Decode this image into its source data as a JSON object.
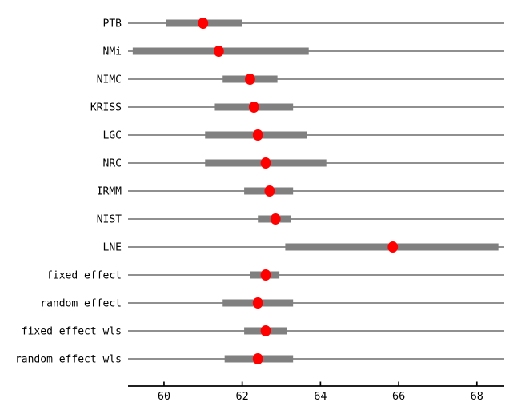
{
  "chart_data": {
    "type": "scatter",
    "subtype": "forest-dot-plot",
    "title": "",
    "xlabel": "",
    "ylabel": "",
    "xlim": [
      59.08,
      68.7
    ],
    "x_ticks": [
      60,
      62,
      64,
      66,
      68
    ],
    "grid": false,
    "legend": false,
    "rows": [
      {
        "label": "PTB",
        "estimate": 61.0,
        "ci_low": 60.05,
        "ci_high": 62.0
      },
      {
        "label": "NMi",
        "estimate": 61.4,
        "ci_low": 59.2,
        "ci_high": 63.7
      },
      {
        "label": "NIMC",
        "estimate": 62.2,
        "ci_low": 61.5,
        "ci_high": 62.9
      },
      {
        "label": "KRISS",
        "estimate": 62.3,
        "ci_low": 61.3,
        "ci_high": 63.3
      },
      {
        "label": "LGC",
        "estimate": 62.4,
        "ci_low": 61.05,
        "ci_high": 63.65
      },
      {
        "label": "NRC",
        "estimate": 62.6,
        "ci_low": 61.05,
        "ci_high": 64.15
      },
      {
        "label": "IRMM",
        "estimate": 62.7,
        "ci_low": 62.05,
        "ci_high": 63.3
      },
      {
        "label": "NIST",
        "estimate": 62.85,
        "ci_low": 62.4,
        "ci_high": 63.25
      },
      {
        "label": "LNE",
        "estimate": 65.85,
        "ci_low": 63.1,
        "ci_high": 68.55
      },
      {
        "label": "fixed effect",
        "estimate": 62.6,
        "ci_low": 62.2,
        "ci_high": 62.95
      },
      {
        "label": "random effect",
        "estimate": 62.4,
        "ci_low": 61.5,
        "ci_high": 63.3
      },
      {
        "label": "fixed effect wls",
        "estimate": 62.6,
        "ci_low": 62.05,
        "ci_high": 63.15
      },
      {
        "label": "random effect wls",
        "estimate": 62.4,
        "ci_low": 61.55,
        "ci_high": 63.3
      }
    ],
    "colors": {
      "estimate_dot": "#ff0000",
      "interval_bar": "#808080",
      "range_line": "#808080",
      "axis": "#000000",
      "text": "#000000",
      "background": "#ffffff"
    }
  }
}
